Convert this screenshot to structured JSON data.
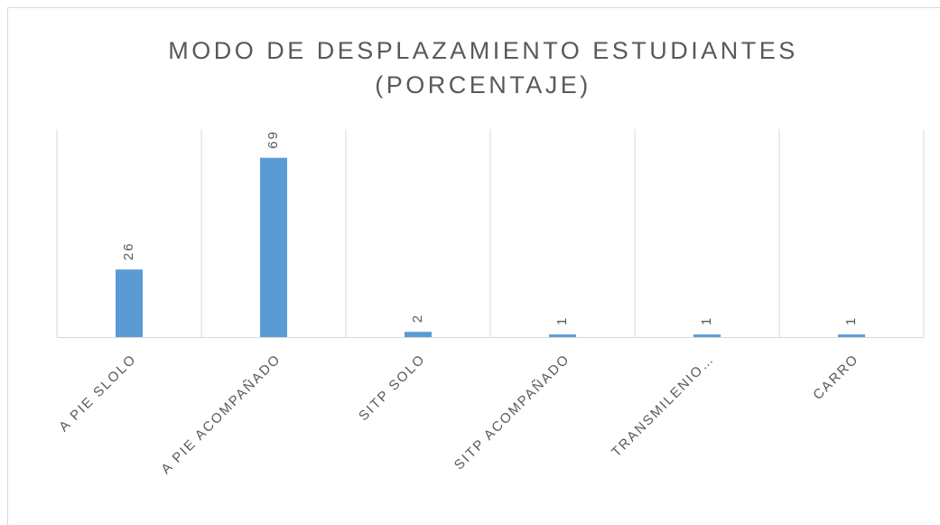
{
  "chart_data": {
    "type": "bar",
    "title": [
      "MODO DE DESPLAZAMIENTO ESTUDIANTES",
      "(PORCENTAJE)"
    ],
    "categories": [
      "A PIE SLOLO",
      "A PIE ACOMPAÑADO",
      "SITP SOLO",
      "SITP ACOMPAÑADO",
      "TRANSMILENIO…",
      "CARRO"
    ],
    "values": [
      26,
      69,
      2,
      1,
      1,
      1
    ],
    "color": "#5b9bd5",
    "ylim": [
      0,
      80
    ]
  }
}
